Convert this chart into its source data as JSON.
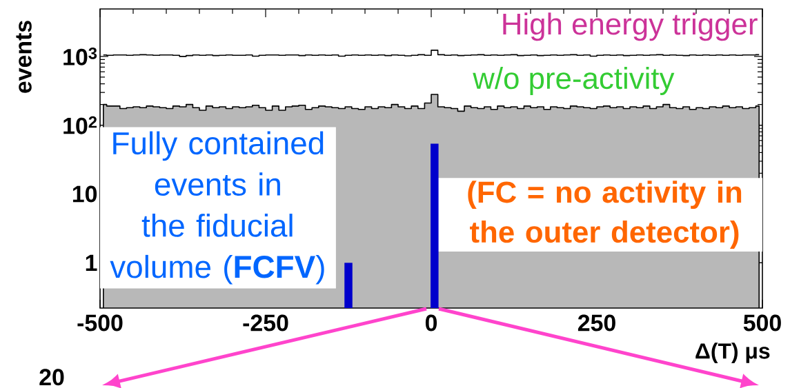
{
  "chart_data": {
    "type": "step",
    "log": "y",
    "xlabel": "Δ(T) μs",
    "ylabel": "events",
    "xlim": [
      -500,
      500
    ],
    "xticks": [
      -500,
      -250,
      0,
      250,
      500
    ],
    "ylim": [
      0.22,
      4900
    ],
    "yticks": [
      1,
      10,
      {
        "value": 100,
        "label": "10$^{2}$"
      },
      {
        "value": 1000,
        "label": "10$^{3}$"
      }
    ],
    "x": [
      -495,
      -485,
      -475,
      -465,
      -455,
      -445,
      -435,
      -425,
      -415,
      -405,
      -395,
      -385,
      -375,
      -365,
      -355,
      -345,
      -335,
      -325,
      -315,
      -305,
      -295,
      -285,
      -275,
      -265,
      -255,
      -245,
      -235,
      -225,
      -215,
      -205,
      -195,
      -185,
      -175,
      -165,
      -155,
      -145,
      -135,
      -125,
      -115,
      -105,
      -95,
      -85,
      -75,
      -65,
      -55,
      -45,
      -35,
      -25,
      -15,
      -5,
      5,
      15,
      25,
      35,
      45,
      55,
      65,
      75,
      85,
      95,
      105,
      115,
      125,
      135,
      145,
      155,
      165,
      175,
      185,
      195,
      205,
      215,
      225,
      235,
      245,
      255,
      265,
      275,
      285,
      295,
      305,
      315,
      325,
      335,
      345,
      355,
      365,
      375,
      385,
      395,
      405,
      415,
      425,
      435,
      445,
      455,
      465,
      475,
      485,
      495
    ],
    "series": [
      {
        "color": "#000000",
        "values": [
          1050,
          1040,
          1050,
          1050,
          1040,
          1050,
          1060,
          1050,
          1040,
          1050,
          1050,
          1040,
          1000,
          1030,
          1050,
          1040,
          1050,
          1030,
          1040,
          1050,
          1040,
          1040,
          1050,
          1010,
          1040,
          1050,
          1050,
          1040,
          1050,
          1050,
          1030,
          1050,
          1040,
          1050,
          1040,
          1050,
          1010,
          1040,
          1050,
          1040,
          1050,
          1040,
          1050,
          1030,
          1050,
          1040,
          1020,
          1040,
          1060,
          1040,
          1230,
          1060,
          1040,
          1050,
          1030,
          1040,
          1050,
          1060,
          1040,
          1050,
          1040,
          1050,
          1060,
          1030,
          1040,
          1050,
          1030,
          1040,
          1050,
          1040,
          1050,
          1060,
          1040,
          1050,
          1010,
          1040,
          1050,
          1040,
          1050,
          1030,
          1040,
          1050,
          1040,
          1050,
          1060,
          1040,
          1050,
          1040,
          1030,
          1050,
          1040,
          1050,
          1040,
          1050,
          1040,
          1050,
          1040,
          1050,
          1050,
          1060
        ]
      },
      {
        "type": "area",
        "color": "#b8b8b8",
        "values": [
          200,
          190,
          190,
          175,
          180,
          185,
          180,
          190,
          185,
          180,
          175,
          190,
          185,
          200,
          180,
          165,
          190,
          180,
          185,
          175,
          185,
          180,
          185,
          195,
          180,
          165,
          190,
          165,
          185,
          190,
          195,
          170,
          180,
          190,
          185,
          180,
          175,
          185,
          175,
          170,
          185,
          175,
          185,
          180,
          200,
          185,
          175,
          190,
          175,
          210,
          280,
          185,
          180,
          175,
          160,
          190,
          180,
          175,
          185,
          170,
          190,
          180,
          185,
          175,
          190,
          180,
          185,
          170,
          185,
          180,
          175,
          190,
          185,
          180,
          175,
          185,
          190,
          180,
          185,
          175,
          185,
          180,
          190,
          175,
          185,
          200,
          180,
          175,
          185,
          170,
          180,
          175,
          185,
          180,
          190,
          180,
          185,
          175,
          180,
          190
        ]
      },
      {
        "type": "bar",
        "color": "#0000cc",
        "x": [
          -125,
          5
        ],
        "values": [
          1,
          54
        ]
      }
    ],
    "annotations": [
      "High energy trigger",
      "w/o pre-activity",
      "Fully contained events in the fiducial volume (**FCFV**)",
      "(FC = no activity in the outer detector)",
      "20"
    ]
  }
}
